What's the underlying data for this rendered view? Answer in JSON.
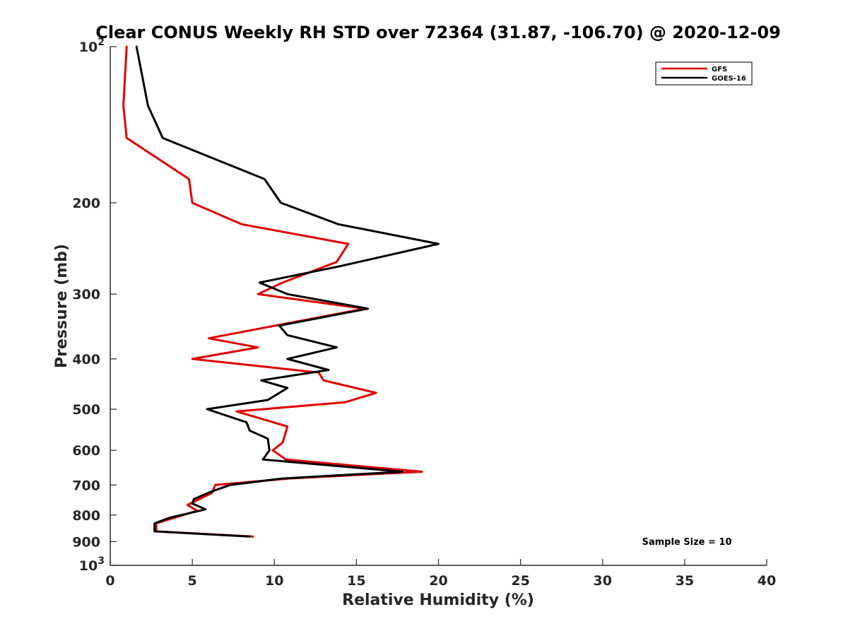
{
  "chart_data": {
    "type": "line",
    "title": "Clear CONUS Weekly RH STD over 72364 (31.87, -106.70) @ 2020-12-09",
    "xlabel": "Relative Humidity (%)",
    "ylabel": "Pressure (mb)",
    "xlim": [
      0,
      40
    ],
    "ylim": [
      100,
      1000
    ],
    "y_scale": "log",
    "y_reversed": true,
    "x_ticks": [
      0,
      5,
      10,
      15,
      20,
      25,
      30,
      35,
      40
    ],
    "y_ticks": [
      {
        "value": 100,
        "base": "10",
        "exp": "2"
      },
      {
        "value": 200,
        "label": "200"
      },
      {
        "value": 300,
        "label": "300"
      },
      {
        "value": 400,
        "label": "400"
      },
      {
        "value": 500,
        "label": "500"
      },
      {
        "value": 600,
        "label": "600"
      },
      {
        "value": 700,
        "label": "700"
      },
      {
        "value": 800,
        "label": "800"
      },
      {
        "value": 900,
        "label": "900"
      },
      {
        "value": 1000,
        "base": "10",
        "exp": "3"
      }
    ],
    "grid": false,
    "legend_position": "top-right",
    "annotation": "Sample Size = 10",
    "series": [
      {
        "name": "GFS",
        "color": "#e00000",
        "points": [
          [
            1.0,
            100
          ],
          [
            0.8,
            130
          ],
          [
            1.0,
            150
          ],
          [
            4.8,
            180
          ],
          [
            5.0,
            200
          ],
          [
            8.0,
            220
          ],
          [
            14.5,
            240
          ],
          [
            13.8,
            260
          ],
          [
            10.5,
            285
          ],
          [
            9.0,
            300
          ],
          [
            15.5,
            320
          ],
          [
            6.0,
            365
          ],
          [
            9.0,
            380
          ],
          [
            5.0,
            400
          ],
          [
            12.7,
            425
          ],
          [
            13.0,
            440
          ],
          [
            16.2,
            465
          ],
          [
            14.3,
            485
          ],
          [
            7.7,
            505
          ],
          [
            10.8,
            540
          ],
          [
            10.5,
            580
          ],
          [
            9.9,
            600
          ],
          [
            10.7,
            625
          ],
          [
            19.0,
            660
          ],
          [
            10.9,
            680
          ],
          [
            6.4,
            700
          ],
          [
            6.2,
            725
          ],
          [
            4.7,
            765
          ],
          [
            5.3,
            785
          ],
          [
            2.8,
            830
          ],
          [
            2.8,
            860
          ],
          [
            8.7,
            880
          ]
        ]
      },
      {
        "name": "GOES-16",
        "color": "#000000",
        "points": [
          [
            1.6,
            100
          ],
          [
            2.3,
            130
          ],
          [
            3.2,
            150
          ],
          [
            9.4,
            180
          ],
          [
            10.4,
            200
          ],
          [
            13.9,
            220
          ],
          [
            20.0,
            240
          ],
          [
            14.0,
            265
          ],
          [
            9.1,
            285
          ],
          [
            10.8,
            300
          ],
          [
            15.7,
            320
          ],
          [
            10.3,
            345
          ],
          [
            10.8,
            360
          ],
          [
            13.8,
            380
          ],
          [
            10.8,
            400
          ],
          [
            13.3,
            420
          ],
          [
            9.2,
            440
          ],
          [
            10.8,
            455
          ],
          [
            9.6,
            480
          ],
          [
            5.9,
            500
          ],
          [
            8.3,
            530
          ],
          [
            8.5,
            550
          ],
          [
            9.6,
            570
          ],
          [
            9.7,
            600
          ],
          [
            9.3,
            625
          ],
          [
            17.8,
            660
          ],
          [
            10.5,
            680
          ],
          [
            7.3,
            700
          ],
          [
            6.2,
            720
          ],
          [
            5.1,
            745
          ],
          [
            5.0,
            760
          ],
          [
            5.8,
            780
          ],
          [
            3.6,
            810
          ],
          [
            2.7,
            830
          ],
          [
            2.7,
            860
          ],
          [
            8.5,
            880
          ]
        ]
      }
    ]
  }
}
